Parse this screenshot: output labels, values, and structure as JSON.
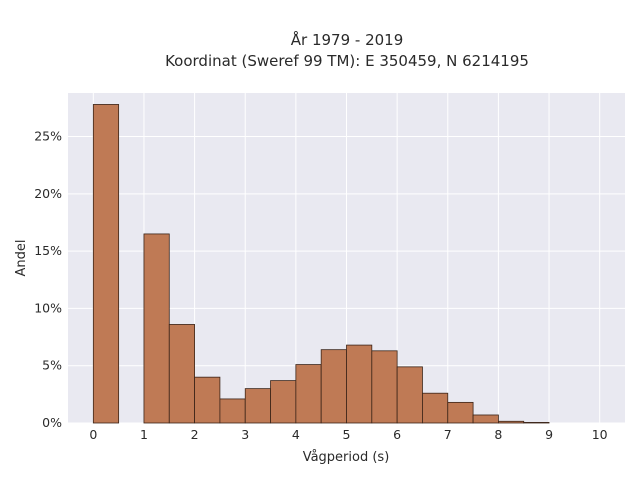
{
  "chart_data": {
    "type": "bar",
    "title": [
      "År 1979 - 2019",
      "Koordinat (Sweref 99 TM): E 350459, N 6214195"
    ],
    "xlabel": "Vågperiod (s)",
    "ylabel": "Andel",
    "bin_width": 0.5,
    "bins": [
      {
        "x0": 0.0,
        "value": 27.8
      },
      {
        "x0": 0.5,
        "value": 0.0
      },
      {
        "x0": 1.0,
        "value": 16.5
      },
      {
        "x0": 1.5,
        "value": 8.6
      },
      {
        "x0": 2.0,
        "value": 4.0
      },
      {
        "x0": 2.5,
        "value": 2.1
      },
      {
        "x0": 3.0,
        "value": 3.0
      },
      {
        "x0": 3.5,
        "value": 3.7
      },
      {
        "x0": 4.0,
        "value": 5.1
      },
      {
        "x0": 4.5,
        "value": 6.4
      },
      {
        "x0": 5.0,
        "value": 6.8
      },
      {
        "x0": 5.5,
        "value": 6.3
      },
      {
        "x0": 6.0,
        "value": 4.9
      },
      {
        "x0": 6.5,
        "value": 2.6
      },
      {
        "x0": 7.0,
        "value": 1.8
      },
      {
        "x0": 7.5,
        "value": 0.7
      },
      {
        "x0": 8.0,
        "value": 0.15
      },
      {
        "x0": 8.5,
        "value": 0.05
      }
    ],
    "xlim": [
      -0.5,
      10.5
    ],
    "ylim": [
      0,
      28.8
    ],
    "xticks": [
      0,
      1,
      2,
      3,
      4,
      5,
      6,
      7,
      8,
      9,
      10
    ],
    "xtick_labels": [
      "0",
      "1",
      "2",
      "3",
      "4",
      "5",
      "6",
      "7",
      "8",
      "9",
      "10"
    ],
    "yticks": [
      0,
      5,
      10,
      15,
      20,
      25
    ],
    "ytick_labels": [
      "0%",
      "5%",
      "10%",
      "15%",
      "20%",
      "25%"
    ],
    "grid": true,
    "colors": {
      "bar_fill": "#bf7a55",
      "bar_edge": "#3b2418",
      "plot_background": "#e9e9f1",
      "grid": "#ffffff"
    }
  }
}
